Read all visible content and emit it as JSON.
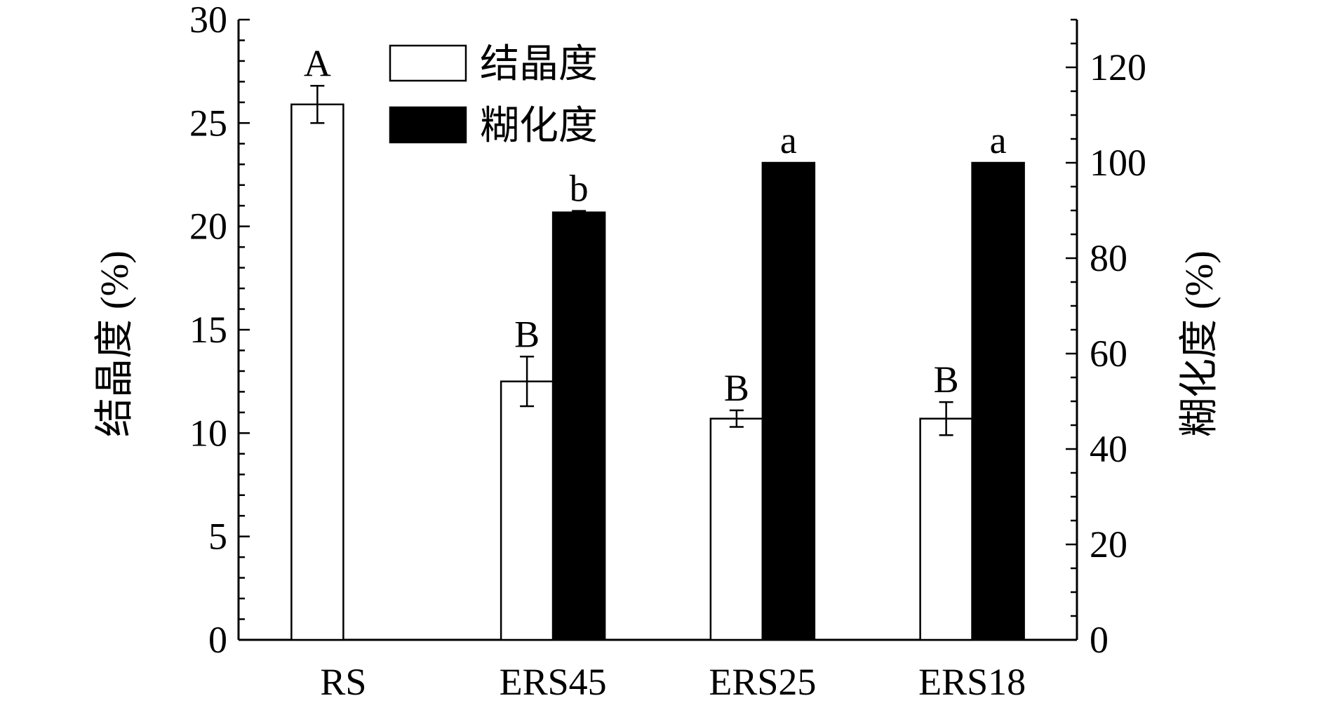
{
  "chart_data": {
    "type": "bar",
    "categories": [
      "RS",
      "ERS45",
      "ERS25",
      "ERS18"
    ],
    "series": [
      {
        "name": "结晶度",
        "axis": "left",
        "fill": "#ffffff",
        "values": [
          25.9,
          12.5,
          10.7,
          10.7
        ],
        "errors": [
          0.9,
          1.2,
          0.4,
          0.8
        ],
        "significance": [
          "A",
          "B",
          "B",
          "B"
        ]
      },
      {
        "name": "糊化度",
        "axis": "right",
        "fill": "#000000",
        "values": [
          null,
          89.6,
          100,
          100
        ],
        "errors": [
          null,
          0.3,
          0,
          0
        ],
        "significance": [
          null,
          "b",
          "a",
          "a"
        ]
      }
    ],
    "ylabel": "结晶度 (%)",
    "ylabel_right": "糊化度 (%)",
    "xlabel": "",
    "ylim": [
      0,
      30
    ],
    "ylim_right": [
      0,
      130
    ],
    "yticks": [
      0,
      5,
      10,
      15,
      20,
      25,
      30
    ],
    "yticks_right": [
      0,
      20,
      40,
      60,
      80,
      100,
      120
    ],
    "legend_position": "top-center",
    "grid": false
  }
}
